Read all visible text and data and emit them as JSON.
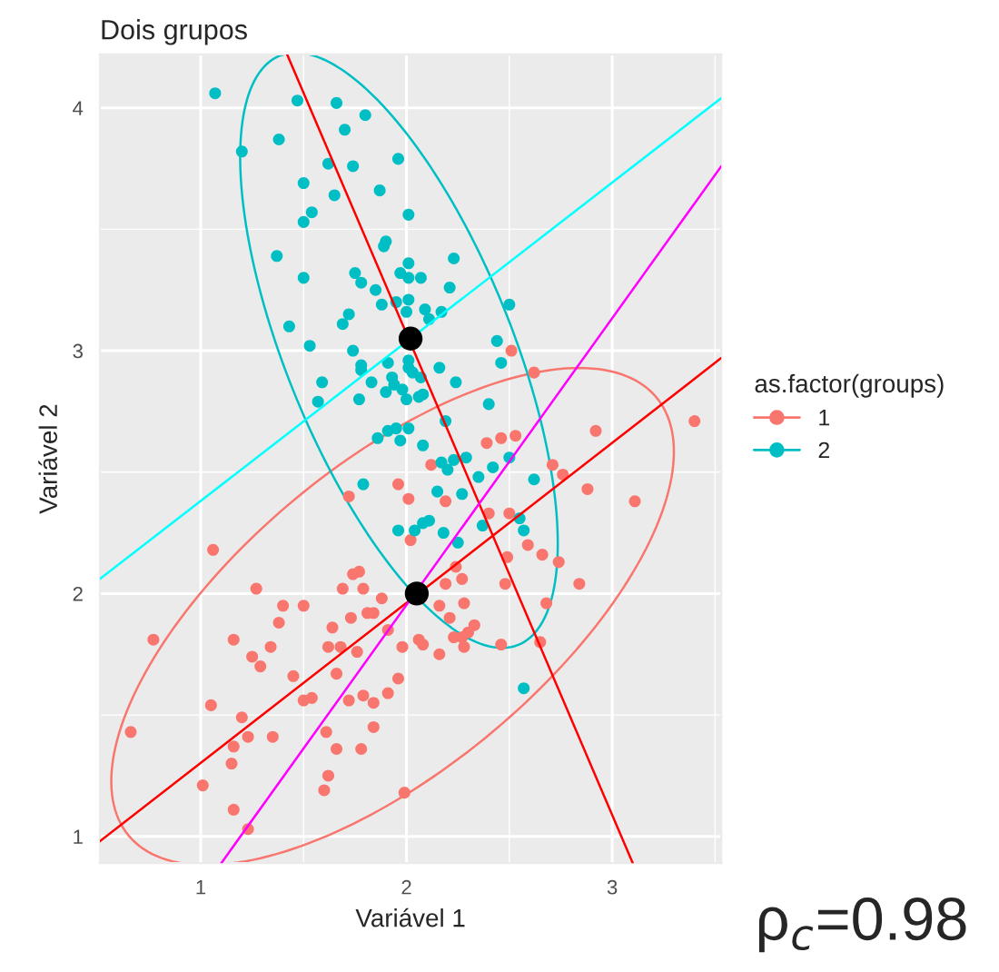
{
  "chart_data": {
    "type": "scatter",
    "title": "Dois grupos",
    "xlabel": "Variável 1",
    "ylabel": "Variável 2",
    "legend_title": "as.factor(groups)",
    "xlim": [
      0.51,
      3.53
    ],
    "ylim": [
      0.89,
      4.22
    ],
    "xticks": [
      1,
      2,
      3
    ],
    "yticks": [
      1,
      2,
      3,
      4
    ],
    "grid": true,
    "legend": "right",
    "marker": "circle",
    "annotations": [
      "ρ$_{c}$=0.98"
    ],
    "series": [
      {
        "name": "1",
        "color": "#f8766d",
        "x": [
          2.51,
          2.62,
          3.4,
          2.92,
          2.39,
          2.46,
          2.53,
          2.12,
          2.71,
          2.76,
          2.88,
          3.11,
          1.96,
          1.72,
          2.01,
          2.19,
          2.4,
          2.5,
          2.02,
          2.59,
          2.66,
          2.74,
          2.49,
          2.24,
          2.27,
          2.48,
          2.84,
          1.06,
          1.74,
          1.77,
          1.69,
          1.79,
          1.27,
          1.88,
          2.19,
          2.16,
          2.28,
          2.68,
          1.4,
          1.5,
          1.81,
          1.84,
          1.73,
          2.21,
          1.38,
          1.64,
          1.91,
          2.33,
          2.3,
          2.23,
          2.27,
          2.06,
          2.08,
          2.28,
          2.46,
          2.65,
          0.77,
          1.16,
          1.34,
          1.62,
          1.68,
          1.76,
          1.98,
          2.16,
          1.25,
          1.29,
          1.45,
          1.66,
          1.96,
          1.91,
          1.79,
          1.84,
          1.72,
          1.5,
          1.54,
          1.05,
          1.2,
          0.66,
          1.16,
          1.23,
          1.35,
          1.61,
          1.84,
          1.66,
          1.78,
          1.15,
          1.62,
          1.01,
          1.6,
          1.99,
          1.16,
          1.23
        ],
        "values": [
          3.0,
          2.91,
          2.71,
          2.67,
          2.62,
          2.64,
          2.65,
          2.53,
          2.53,
          2.49,
          2.43,
          2.38,
          2.45,
          2.4,
          2.39,
          2.38,
          2.33,
          2.33,
          2.22,
          2.2,
          2.16,
          2.13,
          2.15,
          2.11,
          2.06,
          2.04,
          2.04,
          2.18,
          2.08,
          2.09,
          2.02,
          2.02,
          2.02,
          1.98,
          2.04,
          1.95,
          1.96,
          1.96,
          1.95,
          1.95,
          1.92,
          1.92,
          1.9,
          1.9,
          1.88,
          1.86,
          1.85,
          1.87,
          1.84,
          1.82,
          1.82,
          1.81,
          1.79,
          1.78,
          1.79,
          1.8,
          1.81,
          1.81,
          1.78,
          1.78,
          1.78,
          1.76,
          1.78,
          1.75,
          1.74,
          1.7,
          1.66,
          1.67,
          1.65,
          1.59,
          1.58,
          1.55,
          1.56,
          1.56,
          1.57,
          1.54,
          1.49,
          1.43,
          1.37,
          1.41,
          1.41,
          1.43,
          1.45,
          1.36,
          1.36,
          1.3,
          1.25,
          1.21,
          1.19,
          1.18,
          1.11,
          1.03
        ]
      },
      {
        "name": "2",
        "color": "#00bfc4",
        "x": [
          1.07,
          1.47,
          1.66,
          1.8,
          1.2,
          1.38,
          1.7,
          1.62,
          1.74,
          1.96,
          1.5,
          1.87,
          1.65,
          1.54,
          1.5,
          2.01,
          1.37,
          1.9,
          1.89,
          2.23,
          2.01,
          1.5,
          1.75,
          1.78,
          1.97,
          2.01,
          2.07,
          2.21,
          1.85,
          1.88,
          1.95,
          2.01,
          2.5,
          1.72,
          1.69,
          2.0,
          2.09,
          2.17,
          2.11,
          1.43,
          2.44,
          1.53,
          1.74,
          1.78,
          1.78,
          1.91,
          2.01,
          2.01,
          2.03,
          2.46,
          2.16,
          2.07,
          1.59,
          1.83,
          1.93,
          1.94,
          2.24,
          1.57,
          1.77,
          1.9,
          1.98,
          2.0,
          2.08,
          2.06,
          2.4,
          1.86,
          1.91,
          1.95,
          2.01,
          1.97,
          2.08,
          2.19,
          2.17,
          2.2,
          2.23,
          2.29,
          2.35,
          2.42,
          2.5,
          2.62,
          1.79,
          2.15,
          2.27,
          1.96,
          2.04,
          2.08,
          2.11,
          2.18,
          2.25,
          2.37,
          2.55,
          2.57,
          2.57
        ],
        "values": [
          4.06,
          4.03,
          4.02,
          3.97,
          3.82,
          3.87,
          3.91,
          3.77,
          3.76,
          3.79,
          3.69,
          3.66,
          3.64,
          3.57,
          3.53,
          3.56,
          3.39,
          3.45,
          3.43,
          3.38,
          3.36,
          3.3,
          3.32,
          3.28,
          3.32,
          3.3,
          3.3,
          3.26,
          3.25,
          3.19,
          3.2,
          3.21,
          3.19,
          3.15,
          3.11,
          3.16,
          3.17,
          3.16,
          3.13,
          3.1,
          3.04,
          3.02,
          3.0,
          2.94,
          2.92,
          2.95,
          2.96,
          2.93,
          2.91,
          2.95,
          2.93,
          2.89,
          2.87,
          2.87,
          2.89,
          2.86,
          2.87,
          2.79,
          2.8,
          2.83,
          2.84,
          2.8,
          2.82,
          2.81,
          2.78,
          2.64,
          2.67,
          2.68,
          2.68,
          2.63,
          2.61,
          2.71,
          2.54,
          2.51,
          2.55,
          2.56,
          2.48,
          2.52,
          2.56,
          2.47,
          2.45,
          2.42,
          2.41,
          2.26,
          2.26,
          2.29,
          2.3,
          2.25,
          2.21,
          2.28,
          2.31,
          2.26,
          1.61
        ]
      },
      {
        "type": "line",
        "marker": "none",
        "color": "#ff0000",
        "x": [
          1.42,
          3.1
        ],
        "values": [
          4.22,
          0.89
        ]
      },
      {
        "type": "line",
        "marker": "none",
        "color": "#ff0000",
        "x": [
          0.51,
          3.53
        ],
        "values": [
          0.98,
          2.97
        ]
      },
      {
        "type": "line",
        "marker": "none",
        "color": "#ff00ff",
        "x": [
          1.1,
          3.53
        ],
        "values": [
          0.89,
          3.76
        ]
      },
      {
        "type": "line",
        "marker": "none",
        "color": "#00ffff",
        "x": [
          0.51,
          3.53
        ],
        "values": [
          2.06,
          4.04
        ]
      },
      {
        "type": "bubble",
        "color": "#000000",
        "x": [
          2.02,
          2.05
        ],
        "values": [
          3.05,
          2.0
        ],
        "sizes": [
          1,
          1
        ]
      }
    ]
  }
}
